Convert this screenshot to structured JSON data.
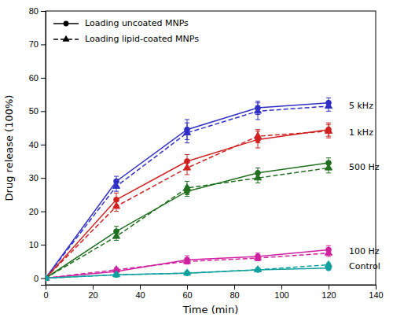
{
  "chart_data": {
    "type": "line",
    "x_label": "Time (min)",
    "y_label": "Drug release (100%)",
    "x": [
      0,
      30,
      60,
      90,
      120
    ],
    "series": [
      {
        "name": "Loading uncoated MNPs",
        "color": "#3030c8",
        "line_style": "solid",
        "marker": "circle",
        "values": [
          0,
          29.0,
          44.5,
          51.0,
          52.5
        ],
        "errors": [
          0,
          1.5,
          3.0,
          2.0,
          1.5
        ]
      },
      {
        "name": "Loading lipid-coated MNPs",
        "color": "#3030c8",
        "line_style": "dashed",
        "marker": "triangle",
        "values": [
          0,
          27.5,
          43.5,
          50.0,
          51.5
        ],
        "errors": [
          0,
          1.5,
          3.0,
          2.5,
          1.5
        ]
      },
      {
        "name": "Loading uncoated MNPs",
        "color": "#d02020",
        "line_style": "solid",
        "marker": "circle",
        "values": [
          0,
          23.5,
          35.0,
          41.5,
          44.5
        ],
        "errors": [
          0,
          2.0,
          2.0,
          2.5,
          2.0
        ]
      },
      {
        "name": "Loading lipid-coated MNPs",
        "color": "#d02020",
        "line_style": "dashed",
        "marker": "triangle",
        "values": [
          0,
          21.5,
          33.0,
          42.5,
          44.0
        ],
        "errors": [
          0,
          1.5,
          2.0,
          2.0,
          2.0
        ]
      },
      {
        "name": "Loading uncoated MNPs",
        "color": "#207020",
        "line_style": "solid",
        "marker": "circle",
        "values": [
          0,
          14.0,
          26.0,
          31.5,
          34.5
        ],
        "errors": [
          0,
          1.5,
          1.5,
          1.5,
          1.5
        ]
      },
      {
        "name": "Loading lipid-coated MNPs",
        "color": "#207020",
        "line_style": "dashed",
        "marker": "triangle",
        "values": [
          0,
          12.5,
          27.0,
          30.0,
          33.0
        ],
        "errors": [
          0,
          1.2,
          2.0,
          1.5,
          1.5
        ]
      },
      {
        "name": "Loading uncoated MNPs",
        "color": "#d020a0",
        "line_style": "solid",
        "marker": "circle",
        "values": [
          0,
          2.0,
          5.5,
          6.5,
          8.5
        ],
        "errors": [
          0,
          0.8,
          1.2,
          1.0,
          1.2
        ]
      },
      {
        "name": "Loading lipid-coated MNPs",
        "color": "#d020a0",
        "line_style": "dashed",
        "marker": "triangle",
        "values": [
          0,
          2.5,
          5.0,
          6.0,
          7.5
        ],
        "errors": [
          0,
          0.6,
          0.8,
          0.8,
          1.0
        ]
      },
      {
        "name": "Loading uncoated MNPs",
        "color": "#10a0a0",
        "line_style": "solid",
        "marker": "circle",
        "values": [
          0,
          1.0,
          1.5,
          2.5,
          3.0
        ],
        "errors": [
          0,
          0.3,
          0.4,
          0.5,
          0.4
        ]
      },
      {
        "name": "Loading lipid-coated MNPs",
        "color": "#10a0a0",
        "line_style": "dashed",
        "marker": "triangle",
        "values": [
          0,
          1.0,
          1.5,
          2.5,
          4.0
        ],
        "errors": [
          0,
          0.3,
          0.4,
          0.4,
          0.5
        ]
      }
    ],
    "annotations": [
      {
        "text": "5 kHz",
        "x": 128,
        "y": 51.5
      },
      {
        "text": "1 kHz",
        "x": 128,
        "y": 43.5
      },
      {
        "text": "500 Hz",
        "x": 128,
        "y": 33.0
      },
      {
        "text": "100 Hz",
        "x": 128,
        "y": 8.0
      },
      {
        "text": "Control",
        "x": 128,
        "y": 3.5
      }
    ],
    "xlim": [
      0,
      140
    ],
    "ylim": [
      -2,
      80
    ],
    "xticks": [
      0,
      20,
      40,
      60,
      80,
      100,
      120,
      140
    ],
    "yticks": [
      0,
      10,
      20,
      30,
      40,
      50,
      60,
      70,
      80
    ],
    "legend": "upper left",
    "grid": false
  }
}
